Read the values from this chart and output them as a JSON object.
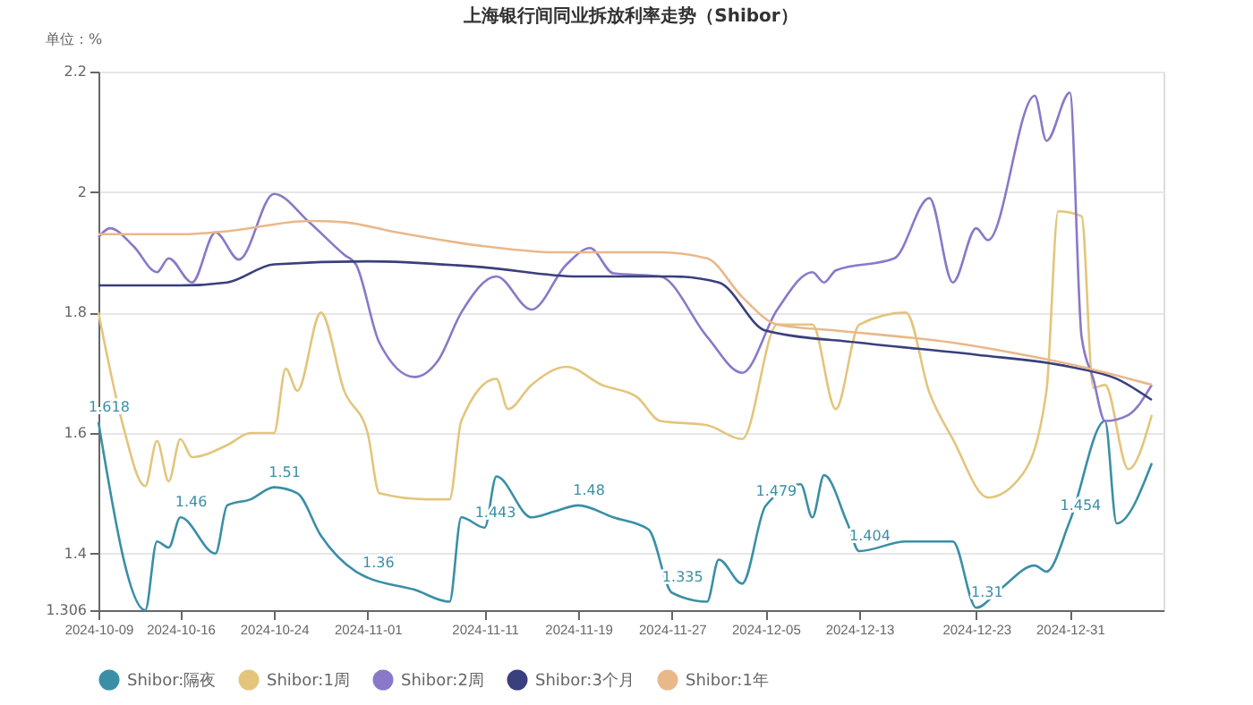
{
  "chart_data": {
    "type": "line",
    "title": "上海银行间同业拆放利率走势（Shibor）",
    "ylabel": "单位：%",
    "xlim": [
      "2024-10-09",
      "2025-01-08"
    ],
    "xticks": [
      "2024-10-09",
      "2024-10-16",
      "2024-10-24",
      "2024-11-01",
      "2024-11-11",
      "2024-11-19",
      "2024-11-27",
      "2024-12-05",
      "2024-12-13",
      "2024-12-23",
      "2024-12-31"
    ],
    "ylim": [
      1.306,
      2.2
    ],
    "yticks": [
      1.306,
      1.4,
      1.6,
      1.8,
      2,
      2.2
    ],
    "grid": "y",
    "legend": "bottom",
    "marker": "none",
    "line_style": "solid",
    "series": [
      {
        "name": "Shibor:隔夜",
        "color": "#3a8fa6",
        "x": [
          "2024-10-09",
          "2024-10-13",
          "2024-10-14",
          "2024-10-15",
          "2024-10-16",
          "2024-10-19",
          "2024-10-20",
          "2024-10-22",
          "2024-10-24",
          "2024-10-26",
          "2024-10-28",
          "2024-10-31",
          "2024-11-01",
          "2024-11-05",
          "2024-11-08",
          "2024-11-09",
          "2024-11-11",
          "2024-11-12",
          "2024-11-15",
          "2024-11-17",
          "2024-11-19",
          "2024-11-22",
          "2024-11-25",
          "2024-11-27",
          "2024-11-30",
          "2024-12-01",
          "2024-12-03",
          "2024-12-05",
          "2024-12-08",
          "2024-12-09",
          "2024-12-10",
          "2024-12-12",
          "2024-12-13",
          "2024-12-17",
          "2024-12-21",
          "2024-12-23",
          "2024-12-25",
          "2024-12-28",
          "2024-12-29",
          "2024-12-31",
          "2025-01-03",
          "2025-01-04",
          "2025-01-07"
        ],
        "values": [
          1.618,
          1.306,
          1.42,
          1.41,
          1.46,
          1.4,
          1.48,
          1.49,
          1.51,
          1.5,
          1.43,
          1.37,
          1.36,
          1.34,
          1.32,
          1.46,
          1.443,
          1.528,
          1.46,
          1.47,
          1.48,
          1.46,
          1.44,
          1.335,
          1.32,
          1.39,
          1.35,
          1.479,
          1.515,
          1.46,
          1.53,
          1.45,
          1.404,
          1.42,
          1.42,
          1.31,
          1.34,
          1.38,
          1.37,
          1.454,
          1.62,
          1.45,
          1.55
        ],
        "value_labels": [
          "1.618",
          null,
          null,
          null,
          "1.46",
          null,
          null,
          null,
          "1.51",
          null,
          null,
          null,
          "1.36",
          null,
          null,
          null,
          "1.443",
          null,
          null,
          null,
          "1.48",
          null,
          null,
          "1.335",
          null,
          null,
          null,
          "1.479",
          null,
          null,
          null,
          null,
          "1.404",
          null,
          null,
          "1.31",
          null,
          null,
          null,
          "1.454",
          null,
          null,
          null
        ]
      },
      {
        "name": "Shibor:1周",
        "color": "#e3c57c",
        "x": [
          "2024-10-09",
          "2024-10-11",
          "2024-10-13",
          "2024-10-14",
          "2024-10-15",
          "2024-10-16",
          "2024-10-17",
          "2024-10-20",
          "2024-10-22",
          "2024-10-24",
          "2024-10-25",
          "2024-10-26",
          "2024-10-28",
          "2024-10-30",
          "2024-11-01",
          "2024-11-02",
          "2024-11-06",
          "2024-11-08",
          "2024-11-09",
          "2024-11-12",
          "2024-11-13",
          "2024-11-15",
          "2024-11-18",
          "2024-11-21",
          "2024-11-24",
          "2024-11-26",
          "2024-11-30",
          "2024-12-03",
          "2024-12-06",
          "2024-12-09",
          "2024-12-11",
          "2024-12-13",
          "2024-12-17",
          "2024-12-19",
          "2024-12-21",
          "2024-12-24",
          "2024-12-27",
          "2024-12-29",
          "2024-12-30",
          "2025-01-01",
          "2025-01-02",
          "2025-01-03",
          "2025-01-05",
          "2025-01-07"
        ],
        "values": [
          1.8,
          1.62,
          1.512,
          1.587,
          1.52,
          1.59,
          1.56,
          1.58,
          1.6,
          1.6,
          1.707,
          1.67,
          1.8,
          1.67,
          1.6,
          1.5,
          1.49,
          1.49,
          1.62,
          1.69,
          1.64,
          1.68,
          1.71,
          1.68,
          1.66,
          1.62,
          1.613,
          1.59,
          1.78,
          1.78,
          1.64,
          1.78,
          1.8,
          1.667,
          1.59,
          1.493,
          1.533,
          1.67,
          1.968,
          1.96,
          1.675,
          1.68,
          1.54,
          1.63
        ]
      },
      {
        "name": "Shibor:2周",
        "color": "#8a78c8",
        "x": [
          "2024-10-09",
          "2024-10-10",
          "2024-10-12",
          "2024-10-14",
          "2024-10-15",
          "2024-10-17",
          "2024-10-19",
          "2024-10-21",
          "2024-10-24",
          "2024-10-27",
          "2024-10-30",
          "2024-10-31",
          "2024-11-02",
          "2024-11-05",
          "2024-11-07",
          "2024-11-09",
          "2024-11-12",
          "2024-11-15",
          "2024-11-18",
          "2024-11-20",
          "2024-11-22",
          "2024-11-26",
          "2024-11-30",
          "2024-12-03",
          "2024-12-06",
          "2024-12-09",
          "2024-12-10",
          "2024-12-11",
          "2024-12-16",
          "2024-12-19",
          "2024-12-21",
          "2024-12-23",
          "2024-12-24",
          "2024-12-28",
          "2024-12-29",
          "2024-12-31",
          "2025-01-01",
          "2025-01-02",
          "2025-01-03",
          "2025-01-05",
          "2025-01-07"
        ],
        "values": [
          1.925,
          1.94,
          1.91,
          1.867,
          1.89,
          1.85,
          1.933,
          1.888,
          1.997,
          1.95,
          1.896,
          1.88,
          1.75,
          1.693,
          1.72,
          1.8,
          1.86,
          1.805,
          1.88,
          1.907,
          1.865,
          1.86,
          1.76,
          1.7,
          1.805,
          1.867,
          1.85,
          1.87,
          1.89,
          1.99,
          1.85,
          1.94,
          1.92,
          2.16,
          2.085,
          2.165,
          1.76,
          1.69,
          1.62,
          1.63,
          1.68
        ]
      },
      {
        "name": "Shibor:3个月",
        "color": "#3a3f7d",
        "x": [
          "2024-10-09",
          "2024-10-16",
          "2024-10-20",
          "2024-10-24",
          "2024-11-01",
          "2024-11-11",
          "2024-11-19",
          "2024-11-27",
          "2024-12-01",
          "2024-12-05",
          "2024-12-13",
          "2024-12-23",
          "2024-12-31",
          "2025-01-04",
          "2025-01-07"
        ],
        "values": [
          1.845,
          1.845,
          1.85,
          1.88,
          1.885,
          1.875,
          1.86,
          1.86,
          1.85,
          1.77,
          1.75,
          1.73,
          1.71,
          1.69,
          1.655
        ]
      },
      {
        "name": "Shibor:1年",
        "color": "#e9b88a",
        "x": [
          "2024-10-09",
          "2024-10-16",
          "2024-10-20",
          "2024-10-27",
          "2024-10-30",
          "2024-11-03",
          "2024-11-11",
          "2024-11-17",
          "2024-11-26",
          "2024-11-30",
          "2024-12-03",
          "2024-12-06",
          "2024-12-11",
          "2024-12-21",
          "2024-12-27",
          "2025-01-01",
          "2025-01-07"
        ],
        "values": [
          1.93,
          1.93,
          1.935,
          1.952,
          1.95,
          1.935,
          1.91,
          1.9,
          1.9,
          1.89,
          1.826,
          1.78,
          1.77,
          1.75,
          1.73,
          1.71,
          1.68
        ]
      }
    ]
  }
}
